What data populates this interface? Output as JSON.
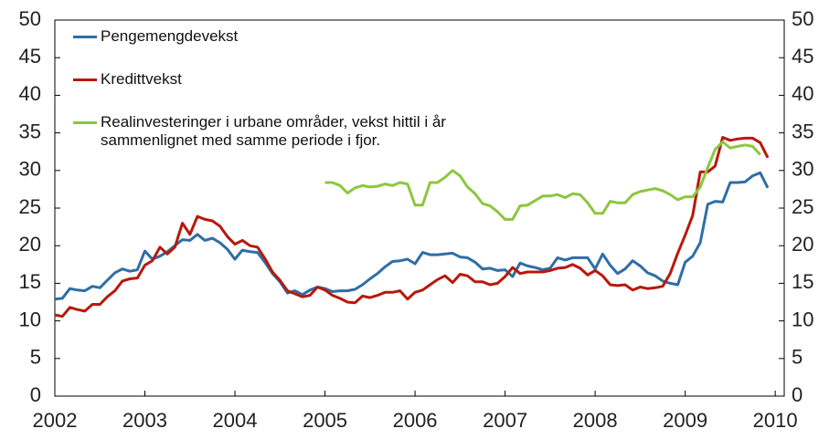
{
  "chart_data": {
    "type": "line",
    "x": [
      2002,
      2002.083,
      2002.167,
      2002.25,
      2002.333,
      2002.417,
      2002.5,
      2002.583,
      2002.667,
      2002.75,
      2002.833,
      2002.917,
      2003,
      2003.083,
      2003.167,
      2003.25,
      2003.333,
      2003.417,
      2003.5,
      2003.583,
      2003.667,
      2003.75,
      2003.833,
      2003.917,
      2004,
      2004.083,
      2004.167,
      2004.25,
      2004.333,
      2004.417,
      2004.5,
      2004.583,
      2004.667,
      2004.75,
      2004.833,
      2004.917,
      2005,
      2005.083,
      2005.167,
      2005.25,
      2005.333,
      2005.417,
      2005.5,
      2005.583,
      2005.667,
      2005.75,
      2005.833,
      2005.917,
      2006,
      2006.083,
      2006.167,
      2006.25,
      2006.333,
      2006.417,
      2006.5,
      2006.583,
      2006.667,
      2006.75,
      2006.833,
      2006.917,
      2007,
      2007.083,
      2007.167,
      2007.25,
      2007.333,
      2007.417,
      2007.5,
      2007.583,
      2007.667,
      2007.75,
      2007.833,
      2007.917,
      2008,
      2008.083,
      2008.167,
      2008.25,
      2008.333,
      2008.417,
      2008.5,
      2008.583,
      2008.667,
      2008.75,
      2008.833,
      2008.917,
      2009,
      2009.083,
      2009.167,
      2009.25,
      2009.333,
      2009.417,
      2009.5,
      2009.583,
      2009.667,
      2009.75,
      2009.833,
      2009.917
    ],
    "series": [
      {
        "name": "Pengemengdevekst",
        "color": "#2e6ea6",
        "values": [
          12.9,
          13.0,
          14.3,
          14.1,
          14.0,
          14.6,
          14.4,
          15.4,
          16.4,
          16.9,
          16.6,
          16.8,
          19.3,
          18.2,
          18.6,
          19.2,
          20.0,
          20.8,
          20.7,
          21.5,
          20.7,
          21.0,
          20.4,
          19.5,
          18.2,
          19.4,
          19.2,
          19.1,
          17.8,
          16.3,
          15.2,
          13.7,
          14.0,
          13.5,
          14.1,
          14.5,
          14.3,
          13.9,
          14.0,
          14.0,
          14.2,
          14.8,
          15.6,
          16.3,
          17.2,
          17.9,
          18.0,
          18.2,
          17.6,
          19.1,
          18.8,
          18.8,
          18.9,
          19.0,
          18.5,
          18.4,
          17.8,
          16.9,
          17.0,
          16.7,
          16.8,
          15.9,
          17.7,
          17.3,
          17.1,
          16.8,
          17.0,
          18.4,
          18.1,
          18.4,
          18.4,
          18.4,
          16.9,
          18.9,
          17.4,
          16.3,
          16.9,
          18.0,
          17.3,
          16.4,
          16.0,
          15.3,
          15.0,
          14.8,
          17.8,
          18.6,
          20.4,
          25.5,
          25.9,
          25.8,
          28.4,
          28.4,
          28.5,
          29.3,
          29.7,
          27.7
        ]
      },
      {
        "name": "Kredittvekst",
        "color": "#b8180c",
        "values": [
          10.8,
          10.6,
          11.8,
          11.5,
          11.3,
          12.2,
          12.2,
          13.2,
          14.0,
          15.3,
          15.6,
          15.7,
          17.4,
          18.0,
          19.8,
          18.9,
          19.8,
          23.0,
          21.5,
          23.9,
          23.5,
          23.3,
          22.6,
          21.2,
          20.2,
          20.7,
          20.0,
          19.8,
          18.3,
          16.5,
          15.4,
          14.0,
          13.6,
          13.2,
          13.4,
          14.5,
          14.1,
          13.4,
          13.0,
          12.5,
          12.4,
          13.3,
          13.1,
          13.4,
          13.8,
          13.8,
          14.0,
          12.9,
          13.8,
          14.1,
          14.8,
          15.5,
          16.0,
          15.1,
          16.2,
          16.0,
          15.2,
          15.2,
          14.8,
          15.0,
          15.9,
          17.1,
          16.3,
          16.5,
          16.5,
          16.5,
          16.7,
          17.0,
          17.1,
          17.5,
          17.0,
          16.1,
          16.7,
          16.0,
          14.8,
          14.7,
          14.8,
          14.1,
          14.5,
          14.3,
          14.4,
          14.6,
          16.3,
          19.0,
          21.4,
          24.0,
          29.8,
          29.8,
          30.6,
          34.4,
          34.0,
          34.2,
          34.3,
          34.3,
          33.7,
          31.7
        ]
      },
      {
        "name": "Realinvesteringer i urbane områder, vekst hittil i år\nsammenlignet med samme periode i fjor.",
        "color": "#8dc63f",
        "values": [
          null,
          null,
          null,
          null,
          null,
          null,
          null,
          null,
          null,
          null,
          null,
          null,
          null,
          null,
          null,
          null,
          null,
          null,
          null,
          null,
          null,
          null,
          null,
          null,
          null,
          null,
          null,
          null,
          null,
          null,
          null,
          null,
          null,
          null,
          null,
          null,
          28.4,
          28.4,
          28.0,
          27.0,
          27.7,
          28.0,
          27.8,
          27.9,
          28.2,
          28.0,
          28.4,
          28.2,
          25.4,
          25.4,
          28.4,
          28.4,
          29.1,
          30.0,
          29.3,
          27.8,
          26.9,
          25.6,
          25.3,
          24.5,
          23.5,
          23.5,
          25.3,
          25.4,
          26.0,
          26.6,
          26.6,
          26.8,
          26.4,
          26.9,
          26.8,
          25.7,
          24.3,
          24.3,
          25.9,
          25.7,
          25.7,
          26.8,
          27.2,
          27.4,
          27.6,
          27.3,
          26.8,
          26.1,
          26.5,
          26.5,
          27.8,
          30.4,
          32.8,
          33.8,
          33.0,
          33.2,
          33.4,
          33.2,
          32.1,
          null
        ]
      }
    ],
    "xlim": [
      2002,
      2010.1
    ],
    "xticks": [
      2002,
      2003,
      2004,
      2005,
      2006,
      2007,
      2008,
      2009,
      2010
    ],
    "ylim": [
      0,
      50
    ],
    "yticks": [
      0,
      5,
      10,
      15,
      20,
      25,
      30,
      35,
      40,
      45,
      50
    ],
    "y2lim": [
      0,
      50
    ],
    "y2ticks": [
      0,
      5,
      10,
      15,
      20,
      25,
      30,
      35,
      40,
      45,
      50
    ],
    "legend": "upper left"
  }
}
